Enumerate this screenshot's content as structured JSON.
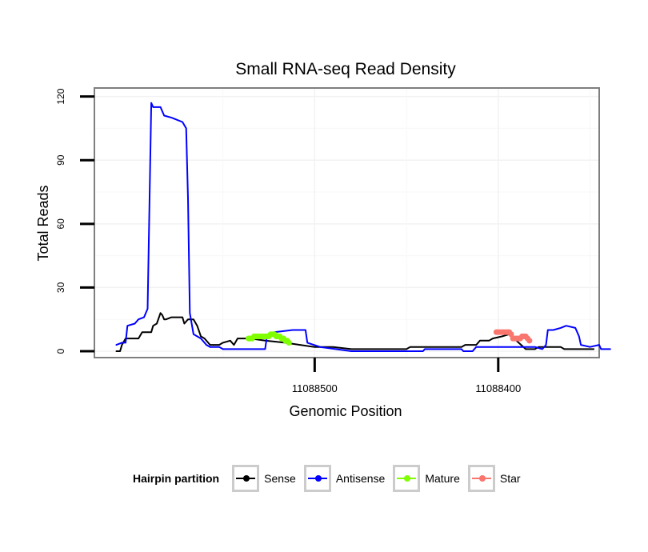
{
  "chart_data": {
    "type": "line",
    "title": "Small RNA-seq Read Density",
    "xlabel": "Genomic Position",
    "ylabel": "Total Reads",
    "x_reversed": true,
    "xlim": [
      11088620,
      11088345
    ],
    "ylim": [
      -3,
      124
    ],
    "x_ticks": [
      11088500,
      11088400
    ],
    "x_tick_labels": [
      "11088500",
      "11088400"
    ],
    "y_ticks": [
      0,
      30,
      60,
      90,
      120
    ],
    "y_tick_labels": [
      "0",
      "30",
      "60",
      "90",
      "120"
    ],
    "grid": true,
    "legend": {
      "title": "Hairpin partition",
      "position": "bottom",
      "entries": [
        "Sense",
        "Antisense",
        "Mature",
        "Star"
      ]
    },
    "series": [
      {
        "name": "Sense",
        "color": "#000000",
        "marker": "none",
        "points": [
          [
            11088608,
            0
          ],
          [
            11088606,
            0
          ],
          [
            11088605,
            3
          ],
          [
            11088603,
            6
          ],
          [
            11088596,
            6
          ],
          [
            11088594,
            9
          ],
          [
            11088589,
            9
          ],
          [
            11088588,
            12
          ],
          [
            11088586,
            13
          ],
          [
            11088584,
            18
          ],
          [
            11088583,
            17
          ],
          [
            11088582,
            15
          ],
          [
            11088581,
            15
          ],
          [
            11088578,
            16
          ],
          [
            11088572,
            16
          ],
          [
            11088571,
            13
          ],
          [
            11088569,
            15
          ],
          [
            11088566,
            15
          ],
          [
            11088564,
            12
          ],
          [
            11088562,
            7
          ],
          [
            11088560,
            6
          ],
          [
            11088557,
            3
          ],
          [
            11088552,
            3
          ],
          [
            11088550,
            4
          ],
          [
            11088546,
            5
          ],
          [
            11088544,
            3
          ],
          [
            11088542,
            6
          ],
          [
            11088535,
            6
          ],
          [
            11088527,
            5
          ],
          [
            11088516,
            4
          ],
          [
            11088508,
            3
          ],
          [
            11088500,
            2
          ],
          [
            11088490,
            2
          ],
          [
            11088480,
            1
          ],
          [
            11088470,
            1
          ],
          [
            11088460,
            1
          ],
          [
            11088450,
            1
          ],
          [
            11088448,
            2
          ],
          [
            11088420,
            2
          ],
          [
            11088418,
            3
          ],
          [
            11088412,
            3
          ],
          [
            11088410,
            5
          ],
          [
            11088405,
            5
          ],
          [
            11088403,
            6
          ],
          [
            11088398,
            7
          ],
          [
            11088394,
            8
          ],
          [
            11088385,
            1
          ],
          [
            11088380,
            1
          ],
          [
            11088378,
            2
          ],
          [
            11088366,
            2
          ],
          [
            11088364,
            1
          ],
          [
            11088348,
            1
          ]
        ]
      },
      {
        "name": "Antisense",
        "color": "#0000ff",
        "marker": "none",
        "points": [
          [
            11088608,
            3
          ],
          [
            11088605,
            4
          ],
          [
            11088603,
            4
          ],
          [
            11088602,
            12
          ],
          [
            11088598,
            13
          ],
          [
            11088596,
            15
          ],
          [
            11088593,
            16
          ],
          [
            11088591,
            20
          ],
          [
            11088589,
            117
          ],
          [
            11088588,
            115
          ],
          [
            11088584,
            115
          ],
          [
            11088582,
            111
          ],
          [
            11088578,
            110
          ],
          [
            11088575,
            109
          ],
          [
            11088572,
            108
          ],
          [
            11088570,
            105
          ],
          [
            11088569,
            72
          ],
          [
            11088568,
            18
          ],
          [
            11088566,
            8
          ],
          [
            11088562,
            6
          ],
          [
            11088559,
            3
          ],
          [
            11088557,
            2
          ],
          [
            11088552,
            2
          ],
          [
            11088550,
            1
          ],
          [
            11088535,
            1
          ],
          [
            11088527,
            1
          ],
          [
            11088526,
            7
          ],
          [
            11088522,
            9
          ],
          [
            11088512,
            10
          ],
          [
            11088505,
            10
          ],
          [
            11088504,
            4
          ],
          [
            11088497,
            2
          ],
          [
            11088480,
            0
          ],
          [
            11088460,
            0
          ],
          [
            11088441,
            0
          ],
          [
            11088440,
            1
          ],
          [
            11088420,
            1
          ],
          [
            11088419,
            0
          ],
          [
            11088414,
            0
          ],
          [
            11088412,
            2
          ],
          [
            11088400,
            2
          ],
          [
            11088398,
            2
          ],
          [
            11088380,
            2
          ],
          [
            11088376,
            1
          ],
          [
            11088374,
            3
          ],
          [
            11088373,
            10
          ],
          [
            11088370,
            10
          ],
          [
            11088366,
            11
          ],
          [
            11088363,
            12
          ],
          [
            11088358,
            11
          ],
          [
            11088356,
            7
          ],
          [
            11088355,
            3
          ],
          [
            11088350,
            2
          ],
          [
            11088345,
            3
          ],
          [
            11088344,
            1
          ],
          [
            11088339,
            1
          ]
        ]
      },
      {
        "name": "Mature",
        "color": "#7fff00",
        "marker": "circle",
        "points": [
          [
            11088536,
            6
          ],
          [
            11088535,
            6
          ],
          [
            11088534,
            6
          ],
          [
            11088533,
            7
          ],
          [
            11088532,
            7
          ],
          [
            11088531,
            7
          ],
          [
            11088530,
            7
          ],
          [
            11088529,
            7
          ],
          [
            11088528,
            7
          ],
          [
            11088527,
            7
          ],
          [
            11088526,
            7
          ],
          [
            11088525,
            7
          ],
          [
            11088524,
            8
          ],
          [
            11088523,
            8
          ],
          [
            11088522,
            8
          ],
          [
            11088521,
            7
          ],
          [
            11088520,
            7
          ],
          [
            11088519,
            7
          ],
          [
            11088518,
            6
          ],
          [
            11088517,
            6
          ],
          [
            11088516,
            5
          ],
          [
            11088515,
            5
          ],
          [
            11088514,
            4
          ]
        ]
      },
      {
        "name": "Star",
        "color": "#f8766d",
        "marker": "circle",
        "points": [
          [
            11088401,
            9
          ],
          [
            11088400,
            9
          ],
          [
            11088399,
            9
          ],
          [
            11088398,
            9
          ],
          [
            11088397,
            9
          ],
          [
            11088396,
            9
          ],
          [
            11088395,
            9
          ],
          [
            11088394,
            9
          ],
          [
            11088393,
            8
          ],
          [
            11088392,
            6
          ],
          [
            11088391,
            6
          ],
          [
            11088390,
            6
          ],
          [
            11088389,
            6
          ],
          [
            11088388,
            6
          ],
          [
            11088387,
            7
          ],
          [
            11088386,
            7
          ],
          [
            11088385,
            7
          ],
          [
            11088384,
            6
          ],
          [
            11088383,
            5
          ]
        ]
      }
    ]
  }
}
